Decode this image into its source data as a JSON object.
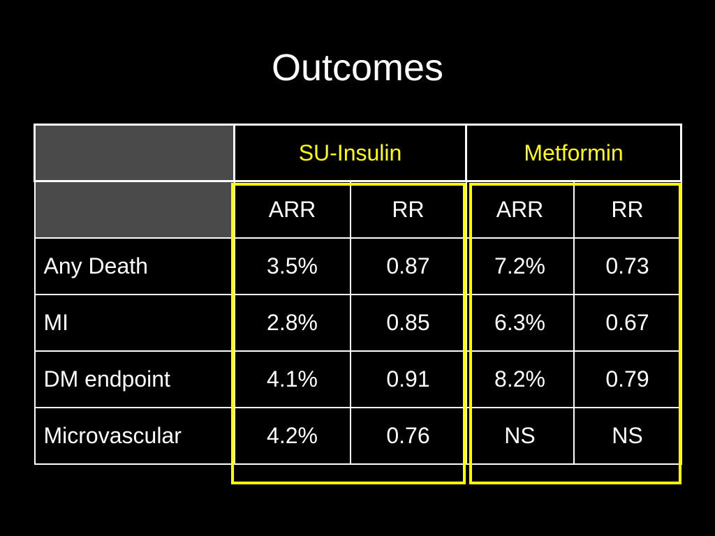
{
  "slide": {
    "title": "Outcomes"
  },
  "table": {
    "groups": [
      "SU-Insulin",
      "Metformin"
    ],
    "subheaders": [
      "ARR",
      "RR",
      "ARR",
      "RR"
    ],
    "rows": [
      {
        "label": "Any Death",
        "values": [
          "3.5%",
          "0.87",
          "7.2%",
          "0.73"
        ]
      },
      {
        "label": "MI",
        "values": [
          "2.8%",
          "0.85",
          "6.3%",
          "0.67"
        ]
      },
      {
        "label": "DM endpoint",
        "values": [
          "4.1%",
          "0.91",
          "8.2%",
          "0.79"
        ]
      },
      {
        "label": "Microvascular",
        "values": [
          "4.2%",
          "0.76",
          "NS",
          "NS"
        ]
      }
    ]
  },
  "colors": {
    "background": "#000000",
    "text": "#ffffff",
    "group_header": "#ffff00",
    "highlight_border": "#ffff00",
    "empty_header_cell": "#4a4a4a"
  }
}
